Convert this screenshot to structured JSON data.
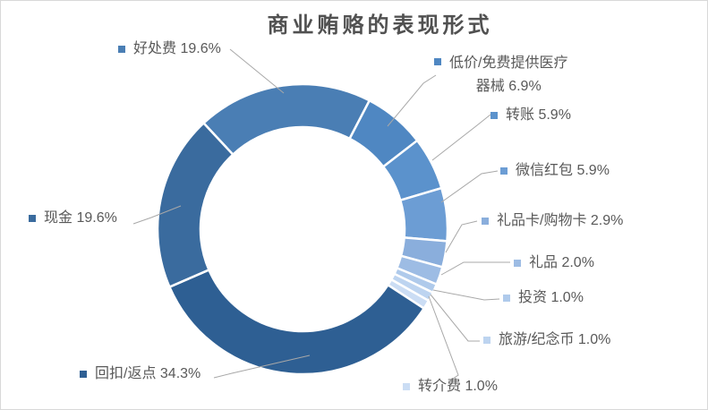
{
  "chart_data": {
    "type": "pie",
    "subtype": "donut",
    "title": "商业贿赂的表现形式",
    "legend_position": "callout-labels",
    "start_angle_deg": -43,
    "donut_hole_ratio": 0.7,
    "slices": [
      {
        "key": "bonus-fee",
        "name": "好处费",
        "value": 19.6,
        "pct_label": "19.6%",
        "label": "好处费 19.6%",
        "color": "#4A7EB4"
      },
      {
        "key": "discounted-medical-devices",
        "name": "低价/免费提供医疗器械",
        "value": 6.9,
        "pct_label": "6.9%",
        "label": "低价/免费提供医疗器械 6.9%",
        "label_line1": "低价/免费提供医疗",
        "label_line2": "器械 6.9%",
        "color": "#4F87C2"
      },
      {
        "key": "bank-transfer",
        "name": "转账",
        "value": 5.9,
        "pct_label": "5.9%",
        "label": "转账 5.9%",
        "color": "#5B92CC"
      },
      {
        "key": "wechat-red-packet",
        "name": "微信红包",
        "value": 5.9,
        "pct_label": "5.9%",
        "label": "微信红包 5.9%",
        "color": "#6C9DD4"
      },
      {
        "key": "gift-card",
        "name": "礼品卡/购物卡",
        "value": 2.9,
        "pct_label": "2.9%",
        "label": "礼品卡/购物卡 2.9%",
        "color": "#8AAEDC"
      },
      {
        "key": "gift",
        "name": "礼品",
        "value": 2.0,
        "pct_label": "2.0%",
        "label": "礼品 2.0%",
        "color": "#9DBCE4"
      },
      {
        "key": "investment",
        "name": "投资",
        "value": 1.0,
        "pct_label": "1.0%",
        "label": "投资 1.0%",
        "color": "#AFCAEB"
      },
      {
        "key": "travel-souvenir-coin",
        "name": "旅游/纪念币",
        "value": 1.0,
        "pct_label": "1.0%",
        "label": "旅游/纪念币 1.0%",
        "color": "#BDD4F0"
      },
      {
        "key": "referral-fee",
        "name": "转介费",
        "value": 1.0,
        "pct_label": "1.0%",
        "label": "转介费 1.0%",
        "color": "#CBDDF4"
      },
      {
        "key": "kickback-rebate",
        "name": "回扣/返点",
        "value": 34.3,
        "pct_label": "34.3%",
        "label": "回扣/返点 34.3%",
        "color": "#2E5F93"
      },
      {
        "key": "cash",
        "name": "现金",
        "value": 19.6,
        "pct_label": "19.6%",
        "label": "现金 19.6%",
        "color": "#3A6B9E"
      }
    ],
    "colors": {
      "background": "#FFFFFF",
      "chart_border": "#D9D9D9",
      "label_text": "#595959",
      "title_text": "#515151",
      "leader_line": "#A8A8A8",
      "slice_gap": "#FFFFFF"
    }
  }
}
